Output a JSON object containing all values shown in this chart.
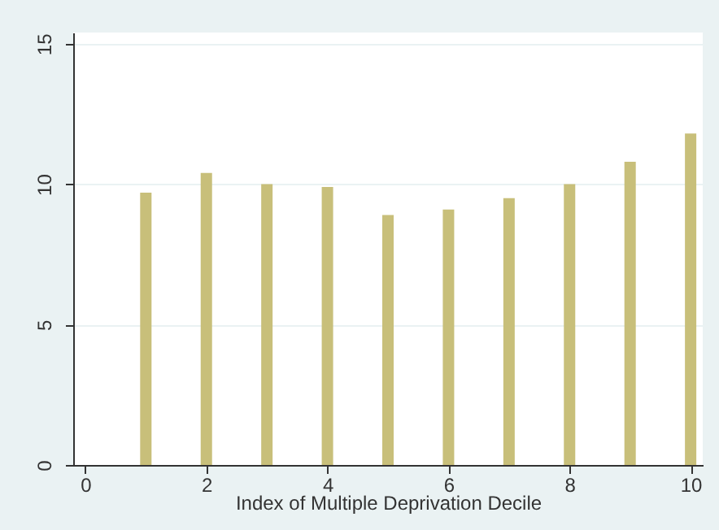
{
  "chart_data": {
    "type": "bar",
    "xlabel": "Index of Multiple Deprivation Decile",
    "x": [
      1,
      2,
      3,
      4,
      5,
      6,
      7,
      8,
      9,
      10
    ],
    "values": [
      9.7,
      10.4,
      10.0,
      9.9,
      8.9,
      9.1,
      9.5,
      10.0,
      10.8,
      11.8
    ],
    "color": "#c8bf7a",
    "xlim": [
      -0.2,
      10.2
    ],
    "xticks": [
      0,
      2,
      4,
      6,
      8,
      10
    ],
    "ylim": [
      0,
      15.4
    ],
    "yticks": [
      0,
      5,
      10,
      15
    ],
    "grid": "y"
  }
}
